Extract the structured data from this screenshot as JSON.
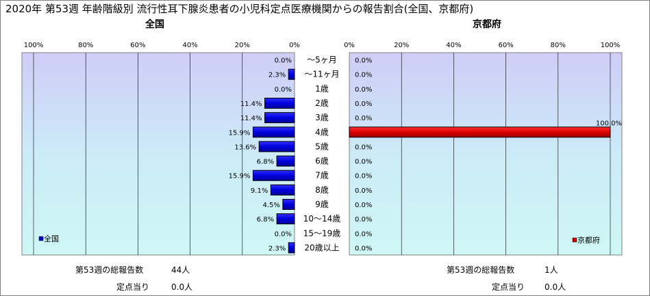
{
  "title": "2020年 第53週 年齢階級別 流行性耳下腺炎患者の小児科定点医療機関からの報告割合(全国、京都府)",
  "panels": {
    "left": {
      "subtitle": "全国",
      "legend": "全国",
      "color": "#0000cc",
      "total_label": "第53週の総報告数",
      "total_value": "44人",
      "per_site_label": "定点当り",
      "per_site_value": "0.0人"
    },
    "right": {
      "subtitle": "京都府",
      "legend": "京都府",
      "color": "#cc0000",
      "total_label": "第53週の総報告数",
      "total_value": "1人",
      "per_site_label": "定点当り",
      "per_site_value": "0.0人"
    }
  },
  "chart_data": {
    "type": "bar",
    "orientation": "horizontal",
    "categories": [
      "～5ヶ月",
      "～11ヶ月",
      "1歳",
      "2歳",
      "3歳",
      "4歳",
      "5歳",
      "6歳",
      "7歳",
      "8歳",
      "9歳",
      "10～14歳",
      "15～19歳",
      "20歳以上"
    ],
    "series": [
      {
        "name": "全国",
        "values": [
          0.0,
          2.3,
          0.0,
          11.4,
          11.4,
          15.9,
          13.6,
          6.8,
          15.9,
          9.1,
          4.5,
          6.8,
          0.0,
          2.3
        ],
        "labels": [
          "0.0%",
          "2.3%",
          "0.0%",
          "11.4%",
          "11.4%",
          "15.9%",
          "13.6%",
          "6.8%",
          "15.9%",
          "9.1%",
          "4.5%",
          "6.8%",
          "0.0%",
          "2.3%"
        ]
      },
      {
        "name": "京都府",
        "values": [
          0.0,
          0.0,
          0.0,
          0.0,
          0.0,
          100.0,
          0.0,
          0.0,
          0.0,
          0.0,
          0.0,
          0.0,
          0.0,
          0.0
        ],
        "labels": [
          "0.0%",
          "0.0%",
          "0.0%",
          "0.0%",
          "0.0%",
          "100.0%",
          "0.0%",
          "0.0%",
          "0.0%",
          "0.0%",
          "0.0%",
          "0.0%",
          "0.0%",
          "0.0%"
        ]
      }
    ],
    "xlim": [
      0,
      100
    ],
    "left_ticks": [
      "100%",
      "80%",
      "60%",
      "40%",
      "20%",
      "0%"
    ],
    "right_ticks": [
      "0%",
      "20%",
      "40%",
      "60%",
      "80%",
      "100%"
    ],
    "grid": true,
    "legend_position": "bottom-left / bottom-right"
  }
}
